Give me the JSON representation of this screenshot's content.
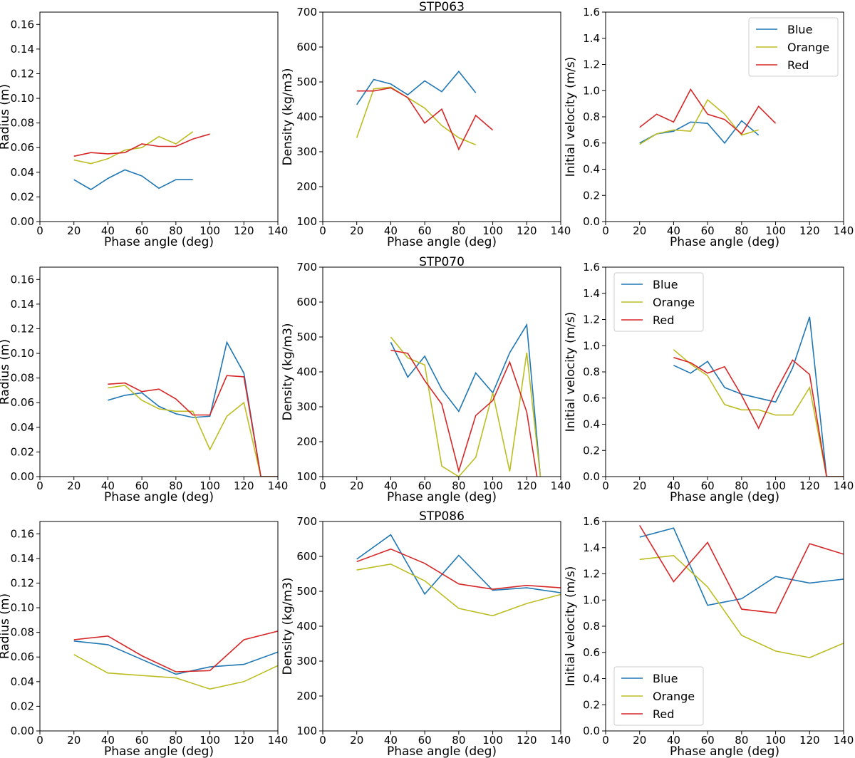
{
  "colors": {
    "Blue": "#1f77b4",
    "Orange": "#bcbd22",
    "Red": "#d62728"
  },
  "chart_data": [
    {
      "type": "line",
      "title": "",
      "xlabel": "Phase angle (deg)",
      "ylabel": "Radius (m)",
      "xlim": [
        0,
        140
      ],
      "ylim": [
        0,
        0.17
      ],
      "xticks": [
        "0",
        "20",
        "40",
        "60",
        "80",
        "100",
        "120",
        "140"
      ],
      "yticks": [
        "0.00",
        "0.02",
        "0.04",
        "0.06",
        "0.08",
        "0.10",
        "0.12",
        "0.14",
        "0.16"
      ],
      "ytick_values": [
        0,
        0.02,
        0.04,
        0.06,
        0.08,
        0.1,
        0.12,
        0.14,
        0.16
      ],
      "legend": null,
      "series": [
        {
          "name": "Blue",
          "x": [
            20,
            30,
            40,
            50,
            60,
            70,
            80,
            90
          ],
          "y": [
            0.034,
            0.026,
            0.035,
            0.042,
            0.037,
            0.027,
            0.034,
            0.034
          ]
        },
        {
          "name": "Orange",
          "x": [
            20,
            30,
            40,
            50,
            60,
            70,
            80,
            90
          ],
          "y": [
            0.05,
            0.047,
            0.051,
            0.058,
            0.06,
            0.069,
            0.063,
            0.073
          ]
        },
        {
          "name": "Red",
          "x": [
            20,
            30,
            40,
            50,
            60,
            70,
            80,
            90,
            100
          ],
          "y": [
            0.053,
            0.056,
            0.055,
            0.056,
            0.063,
            0.061,
            0.061,
            0.067,
            0.071
          ]
        }
      ]
    },
    {
      "type": "line",
      "title": "STP063",
      "xlabel": "Phase angle (deg)",
      "ylabel": "Density (kg/m3)",
      "xlim": [
        0,
        140
      ],
      "ylim": [
        100,
        700
      ],
      "xticks": [
        "0",
        "20",
        "40",
        "60",
        "80",
        "100",
        "120",
        "140"
      ],
      "yticks": [
        "100",
        "200",
        "300",
        "400",
        "500",
        "600",
        "700"
      ],
      "ytick_values": [
        100,
        200,
        300,
        400,
        500,
        600,
        700
      ],
      "legend": null,
      "series": [
        {
          "name": "Blue",
          "x": [
            20,
            30,
            40,
            50,
            60,
            70,
            80,
            90
          ],
          "y": [
            435,
            507,
            494,
            463,
            503,
            472,
            530,
            469
          ]
        },
        {
          "name": "Orange",
          "x": [
            20,
            30,
            40,
            50,
            60,
            70,
            80,
            90
          ],
          "y": [
            340,
            480,
            485,
            455,
            425,
            375,
            340,
            320
          ]
        },
        {
          "name": "Red",
          "x": [
            20,
            30,
            40,
            50,
            60,
            70,
            80,
            90,
            100
          ],
          "y": [
            474,
            474,
            483,
            455,
            382,
            422,
            307,
            404,
            362
          ]
        }
      ]
    },
    {
      "type": "line",
      "title": "",
      "xlabel": "Phase angle (deg)",
      "ylabel": "Initial velocity (m/s)",
      "xlim": [
        0,
        140
      ],
      "ylim": [
        0,
        1.6
      ],
      "xticks": [
        "0",
        "20",
        "40",
        "60",
        "80",
        "100",
        "120",
        "140"
      ],
      "yticks": [
        "0.0",
        "0.2",
        "0.4",
        "0.6",
        "0.8",
        "1.0",
        "1.2",
        "1.4",
        "1.6"
      ],
      "ytick_values": [
        0,
        0.2,
        0.4,
        0.6,
        0.8,
        1.0,
        1.2,
        1.4,
        1.6
      ],
      "legend": "top-right",
      "series": [
        {
          "name": "Blue",
          "x": [
            20,
            30,
            40,
            50,
            60,
            70,
            80,
            90
          ],
          "y": [
            0.6,
            0.67,
            0.69,
            0.76,
            0.75,
            0.6,
            0.77,
            0.66
          ]
        },
        {
          "name": "Orange",
          "x": [
            20,
            30,
            40,
            50,
            60,
            70,
            80,
            90
          ],
          "y": [
            0.59,
            0.67,
            0.7,
            0.69,
            0.93,
            0.82,
            0.66,
            0.7
          ]
        },
        {
          "name": "Red",
          "x": [
            20,
            30,
            40,
            50,
            60,
            70,
            80,
            90,
            100
          ],
          "y": [
            0.72,
            0.82,
            0.76,
            1.01,
            0.82,
            0.78,
            0.67,
            0.88,
            0.75
          ]
        }
      ]
    },
    {
      "type": "line",
      "title": "",
      "xlabel": "Phase angle (deg)",
      "ylabel": "Radius (m)",
      "xlim": [
        0,
        140
      ],
      "ylim": [
        0,
        0.17
      ],
      "xticks": [
        "0",
        "20",
        "40",
        "60",
        "80",
        "100",
        "120",
        "140"
      ],
      "yticks": [
        "0.00",
        "0.02",
        "0.04",
        "0.06",
        "0.08",
        "0.10",
        "0.12",
        "0.14",
        "0.16"
      ],
      "ytick_values": [
        0,
        0.02,
        0.04,
        0.06,
        0.08,
        0.1,
        0.12,
        0.14,
        0.16
      ],
      "legend": null,
      "series": [
        {
          "name": "Blue",
          "x": [
            40,
            50,
            60,
            70,
            80,
            90,
            100,
            110,
            120,
            130,
            140
          ],
          "y": [
            0.062,
            0.066,
            0.068,
            0.057,
            0.051,
            0.048,
            0.049,
            0.109,
            0.084,
            0.0,
            0.0
          ]
        },
        {
          "name": "Orange",
          "x": [
            40,
            50,
            60,
            70,
            80,
            90,
            100,
            110,
            120,
            130,
            140
          ],
          "y": [
            0.072,
            0.074,
            0.062,
            0.055,
            0.053,
            0.053,
            0.022,
            0.049,
            0.06,
            0.0,
            0.0
          ]
        },
        {
          "name": "Red",
          "x": [
            40,
            50,
            60,
            70,
            80,
            90,
            100,
            110,
            120,
            130,
            140
          ],
          "y": [
            0.075,
            0.076,
            0.069,
            0.071,
            0.063,
            0.05,
            0.05,
            0.082,
            0.081,
            0.0,
            0.0
          ]
        }
      ]
    },
    {
      "type": "line",
      "title": "STP070",
      "xlabel": "Phase angle (deg)",
      "ylabel": "Density (kg/m3)",
      "xlim": [
        0,
        140
      ],
      "ylim": [
        100,
        700
      ],
      "xticks": [
        "0",
        "20",
        "40",
        "60",
        "80",
        "100",
        "120",
        "140"
      ],
      "yticks": [
        "100",
        "200",
        "300",
        "400",
        "500",
        "600",
        "700"
      ],
      "ytick_values": [
        100,
        200,
        300,
        400,
        500,
        600,
        700
      ],
      "legend": null,
      "series": [
        {
          "name": "Blue",
          "x": [
            40,
            50,
            60,
            70,
            80,
            90,
            100,
            110,
            120,
            128
          ],
          "y": [
            485,
            385,
            445,
            350,
            287,
            397,
            340,
            455,
            535,
            100
          ]
        },
        {
          "name": "Orange",
          "x": [
            40,
            50,
            60,
            70,
            80,
            90,
            100,
            110,
            120,
            128
          ],
          "y": [
            500,
            440,
            420,
            130,
            100,
            155,
            340,
            115,
            455,
            100
          ]
        },
        {
          "name": "Red",
          "x": [
            40,
            50,
            60,
            70,
            80,
            90,
            100,
            110,
            120,
            126
          ],
          "y": [
            462,
            453,
            375,
            308,
            116,
            275,
            318,
            428,
            285,
            100
          ]
        }
      ]
    },
    {
      "type": "line",
      "title": "",
      "xlabel": "Phase angle (deg)",
      "ylabel": "Initial velocity (m/s)",
      "xlim": [
        0,
        140
      ],
      "ylim": [
        0,
        1.6
      ],
      "xticks": [
        "0",
        "20",
        "40",
        "60",
        "80",
        "100",
        "120",
        "140"
      ],
      "yticks": [
        "0.0",
        "0.2",
        "0.4",
        "0.6",
        "0.8",
        "1.0",
        "1.2",
        "1.4",
        "1.6"
      ],
      "ytick_values": [
        0,
        0.2,
        0.4,
        0.6,
        0.8,
        1.0,
        1.2,
        1.4,
        1.6
      ],
      "legend": "top-left",
      "series": [
        {
          "name": "Blue",
          "x": [
            40,
            50,
            60,
            70,
            80,
            90,
            100,
            110,
            120,
            130,
            140
          ],
          "y": [
            0.85,
            0.79,
            0.88,
            0.68,
            0.63,
            0.6,
            0.57,
            0.83,
            1.22,
            0.0,
            0.0
          ]
        },
        {
          "name": "Orange",
          "x": [
            40,
            50,
            60,
            70,
            80,
            90,
            100,
            110,
            120,
            130,
            140
          ],
          "y": [
            0.97,
            0.86,
            0.77,
            0.55,
            0.51,
            0.51,
            0.47,
            0.47,
            0.68,
            0.0,
            0.0
          ]
        },
        {
          "name": "Red",
          "x": [
            40,
            50,
            60,
            70,
            80,
            90,
            100,
            110,
            120,
            130,
            140
          ],
          "y": [
            0.91,
            0.87,
            0.79,
            0.84,
            0.62,
            0.37,
            0.65,
            0.89,
            0.78,
            0.0,
            0.0
          ]
        }
      ]
    },
    {
      "type": "line",
      "title": "",
      "xlabel": "Phase angle (deg)",
      "ylabel": "Radius (m)",
      "xlim": [
        0,
        140
      ],
      "ylim": [
        0,
        0.17
      ],
      "xticks": [
        "0",
        "20",
        "40",
        "60",
        "80",
        "100",
        "120",
        "140"
      ],
      "yticks": [
        "0.00",
        "0.02",
        "0.04",
        "0.06",
        "0.08",
        "0.10",
        "0.12",
        "0.14",
        "0.16"
      ],
      "ytick_values": [
        0,
        0.02,
        0.04,
        0.06,
        0.08,
        0.1,
        0.12,
        0.14,
        0.16
      ],
      "legend": null,
      "series": [
        {
          "name": "Blue",
          "x": [
            20,
            40,
            60,
            80,
            100,
            120,
            140
          ],
          "y": [
            0.073,
            0.07,
            0.058,
            0.046,
            0.052,
            0.054,
            0.064
          ]
        },
        {
          "name": "Orange",
          "x": [
            20,
            40,
            60,
            80,
            100,
            120,
            140
          ],
          "y": [
            0.062,
            0.047,
            0.045,
            0.043,
            0.034,
            0.04,
            0.053
          ]
        },
        {
          "name": "Red",
          "x": [
            20,
            40,
            60,
            80,
            100,
            120,
            140
          ],
          "y": [
            0.074,
            0.077,
            0.061,
            0.048,
            0.049,
            0.074,
            0.081
          ]
        }
      ]
    },
    {
      "type": "line",
      "title": "STP086",
      "xlabel": "Phase angle (deg)",
      "ylabel": "Density (kg/m3)",
      "xlim": [
        0,
        140
      ],
      "ylim": [
        100,
        700
      ],
      "xticks": [
        "0",
        "20",
        "40",
        "60",
        "80",
        "100",
        "120",
        "140"
      ],
      "yticks": [
        "100",
        "200",
        "300",
        "400",
        "500",
        "600",
        "700"
      ],
      "ytick_values": [
        100,
        200,
        300,
        400,
        500,
        600,
        700
      ],
      "legend": null,
      "series": [
        {
          "name": "Blue",
          "x": [
            20,
            40,
            60,
            80,
            100,
            120,
            140
          ],
          "y": [
            592,
            662,
            492,
            603,
            503,
            510,
            496
          ]
        },
        {
          "name": "Orange",
          "x": [
            20,
            40,
            60,
            80,
            100,
            120,
            140
          ],
          "y": [
            561,
            578,
            530,
            451,
            430,
            465,
            491
          ]
        },
        {
          "name": "Red",
          "x": [
            20,
            40,
            60,
            80,
            100,
            120,
            140
          ],
          "y": [
            585,
            621,
            580,
            521,
            506,
            517,
            510
          ]
        }
      ]
    },
    {
      "type": "line",
      "title": "",
      "xlabel": "Phase angle (deg)",
      "ylabel": "Initial velocity (m/s)",
      "xlim": [
        0,
        140
      ],
      "ylim": [
        0,
        1.6
      ],
      "xticks": [
        "0",
        "20",
        "40",
        "60",
        "80",
        "100",
        "120",
        "140"
      ],
      "yticks": [
        "0.0",
        "0.2",
        "0.4",
        "0.6",
        "0.8",
        "1.0",
        "1.2",
        "1.4",
        "1.6"
      ],
      "ytick_values": [
        0,
        0.2,
        0.4,
        0.6,
        0.8,
        1.0,
        1.2,
        1.4,
        1.6
      ],
      "legend": "bottom-left",
      "series": [
        {
          "name": "Blue",
          "x": [
            20,
            40,
            60,
            80,
            100,
            120,
            140
          ],
          "y": [
            1.48,
            1.55,
            0.96,
            1.01,
            1.18,
            1.13,
            1.16
          ]
        },
        {
          "name": "Orange",
          "x": [
            20,
            40,
            60,
            80,
            100,
            120,
            140
          ],
          "y": [
            1.31,
            1.34,
            1.1,
            0.73,
            0.61,
            0.56,
            0.67
          ]
        },
        {
          "name": "Red",
          "x": [
            20,
            40,
            60,
            80,
            100,
            120,
            140
          ],
          "y": [
            1.57,
            1.14,
            1.44,
            0.93,
            0.9,
            1.43,
            1.35
          ]
        }
      ]
    }
  ]
}
